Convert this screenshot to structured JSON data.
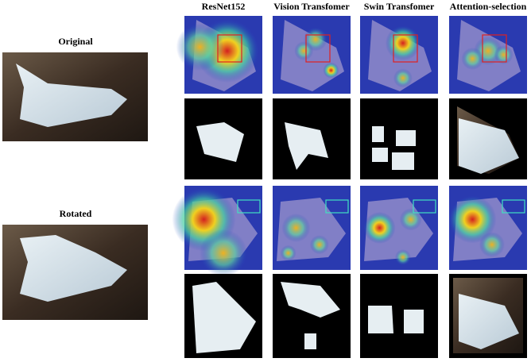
{
  "left_labels": [
    "Original",
    "Rotated"
  ],
  "columns": [
    "ResNet152",
    "Vision Transfomer",
    "Swin Transfomer",
    "Attention-selection"
  ]
}
